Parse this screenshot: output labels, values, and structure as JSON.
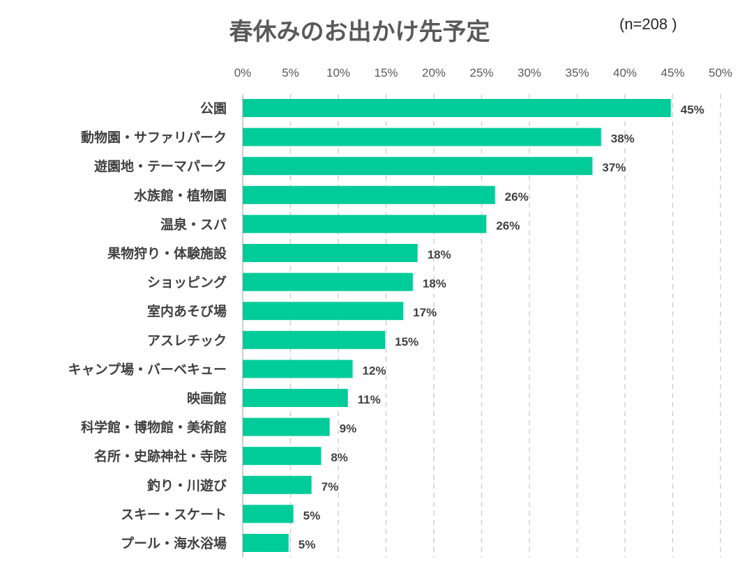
{
  "chart_data": {
    "type": "bar",
    "orientation": "horizontal",
    "title": "春休みのお出かけ先予定",
    "subtitle": "(n=208 )",
    "xlim": [
      0,
      50
    ],
    "x_ticks": [
      "0%",
      "5%",
      "10%",
      "15%",
      "20%",
      "25%",
      "30%",
      "35%",
      "40%",
      "45%",
      "50%"
    ],
    "x_axis_position": "top",
    "grid": "vertical dashed",
    "bar_color": "#00CC99",
    "categories": [
      "公園",
      "動物園・サファリパーク",
      "遊園地・テーマパーク",
      "水族館・植物園",
      "温泉・スパ",
      "果物狩り・体験施設",
      "ショッピング",
      "室内あそび場",
      "アスレチック",
      "キャンプ場・バーベキュー",
      "映画館",
      "科学館・博物館・美術館",
      "名所・史跡神社・寺院",
      "釣り・川遊び",
      "スキー・スケート",
      "プール・海水浴場"
    ],
    "values": [
      44.8,
      37.5,
      36.6,
      26.4,
      25.5,
      18.3,
      17.8,
      16.8,
      14.9,
      11.5,
      11.0,
      9.1,
      8.2,
      7.2,
      5.3,
      4.8
    ],
    "data_labels": [
      "45%",
      "38%",
      "37%",
      "26%",
      "26%",
      "18%",
      "18%",
      "17%",
      "15%",
      "12%",
      "11%",
      "9%",
      "8%",
      "7%",
      "5%",
      "5%"
    ]
  }
}
